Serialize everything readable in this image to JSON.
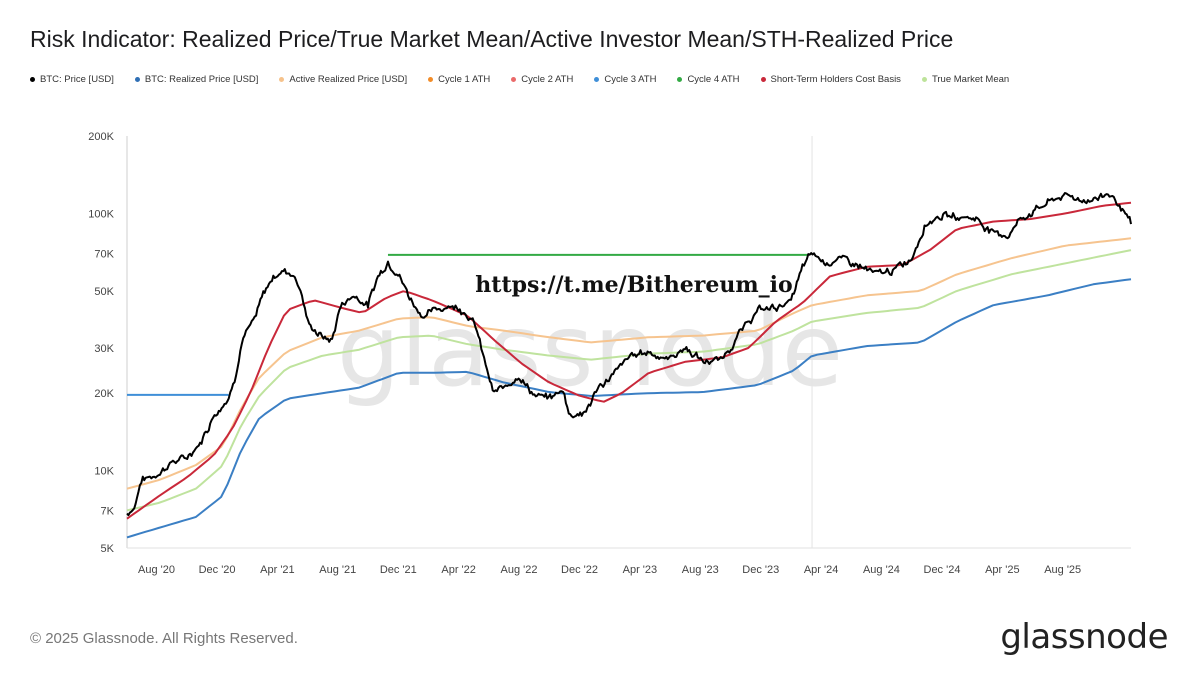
{
  "header": {
    "title": "Risk Indicator: Realized Price/True Market Mean/Active Investor Mean/STH-Realized Price"
  },
  "legend": [
    {
      "label": "BTC: Price [USD]",
      "color": "#000000"
    },
    {
      "label": "BTC: Realized Price [USD]",
      "color": "#2f6fb5"
    },
    {
      "label": "Active Realized Price [USD]",
      "color": "#f6c28b"
    },
    {
      "label": "Cycle 1 ATH",
      "color": "#f28c28"
    },
    {
      "label": "Cycle 2 ATH",
      "color": "#ea6a6a"
    },
    {
      "label": "Cycle 3 ATH",
      "color": "#3f8fd8"
    },
    {
      "label": "Cycle 4 ATH",
      "color": "#33aa44"
    },
    {
      "label": "Short-Term Holders Cost Basis",
      "color": "#c9283a"
    },
    {
      "label": "True Market Mean",
      "color": "#bde39a"
    }
  ],
  "annotation": "https://t.me/Bithereum_io",
  "watermark": "glassnode",
  "footer": {
    "copyright": "© 2025 Glassnode. All Rights Reserved.",
    "logo": "glassnode"
  },
  "chart_data": {
    "type": "line",
    "title": "Risk Indicator: Realized Price/True Market Mean/Active Investor Mean/STH-Realized Price",
    "xlabel": "",
    "ylabel": "",
    "yscale": "log",
    "ylim": [
      5000,
      200000
    ],
    "xlim": [
      2020.42,
      2025.96
    ],
    "y_ticks": [
      {
        "label": "5K",
        "value": 5000
      },
      {
        "label": "7K",
        "value": 7000
      },
      {
        "label": "10K",
        "value": 10000
      },
      {
        "label": "20K",
        "value": 20000
      },
      {
        "label": "30K",
        "value": 30000
      },
      {
        "label": "50K",
        "value": 50000
      },
      {
        "label": "70K",
        "value": 70000
      },
      {
        "label": "100K",
        "value": 100000
      },
      {
        "label": "200K",
        "value": 200000
      }
    ],
    "x_ticks": [
      {
        "label": "Aug '20",
        "t": 2020.583
      },
      {
        "label": "Dec '20",
        "t": 2020.917
      },
      {
        "label": "Apr '21",
        "t": 2021.25
      },
      {
        "label": "Aug '21",
        "t": 2021.583
      },
      {
        "label": "Dec '21",
        "t": 2021.917
      },
      {
        "label": "Apr '22",
        "t": 2022.25
      },
      {
        "label": "Aug '22",
        "t": 2022.583
      },
      {
        "label": "Dec '22",
        "t": 2022.917
      },
      {
        "label": "Apr '23",
        "t": 2023.25
      },
      {
        "label": "Aug '23",
        "t": 2023.583
      },
      {
        "label": "Dec '23",
        "t": 2023.917
      },
      {
        "label": "Apr '24",
        "t": 2024.25
      },
      {
        "label": "Aug '24",
        "t": 2024.583
      },
      {
        "label": "Dec '24",
        "t": 2024.917
      },
      {
        "label": "Apr '25",
        "t": 2025.25
      },
      {
        "label": "Aug '25",
        "t": 2025.583
      }
    ],
    "vertical_markers": [
      2024.2
    ],
    "segments": [
      {
        "name": "Cycle 3 ATH",
        "color": "#3f8fd8",
        "t1": 2020.42,
        "t2": 2020.98,
        "value": 19700
      },
      {
        "name": "Cycle 4 ATH",
        "color": "#33aa44",
        "t1": 2021.86,
        "t2": 2024.18,
        "value": 69000
      }
    ],
    "series": [
      {
        "name": "BTC: Price [USD]",
        "color": "#000000",
        "width": 2.0,
        "jitter": 0.045,
        "points": [
          [
            2020.42,
            6800
          ],
          [
            2020.46,
            7200
          ],
          [
            2020.5,
            9200
          ],
          [
            2020.58,
            9600
          ],
          [
            2020.67,
            10800
          ],
          [
            2020.75,
            11200
          ],
          [
            2020.83,
            13000
          ],
          [
            2020.9,
            16500
          ],
          [
            2020.98,
            19000
          ],
          [
            2021.02,
            24000
          ],
          [
            2021.06,
            33000
          ],
          [
            2021.12,
            38000
          ],
          [
            2021.17,
            48000
          ],
          [
            2021.22,
            56000
          ],
          [
            2021.28,
            60000
          ],
          [
            2021.34,
            58000
          ],
          [
            2021.38,
            50000
          ],
          [
            2021.42,
            37000
          ],
          [
            2021.5,
            33000
          ],
          [
            2021.55,
            32000
          ],
          [
            2021.6,
            44000
          ],
          [
            2021.67,
            48000
          ],
          [
            2021.75,
            44000
          ],
          [
            2021.8,
            56000
          ],
          [
            2021.86,
            65000
          ],
          [
            2021.92,
            58000
          ],
          [
            2021.98,
            47000
          ],
          [
            2022.05,
            40000
          ],
          [
            2022.12,
            42000
          ],
          [
            2022.2,
            44000
          ],
          [
            2022.28,
            42000
          ],
          [
            2022.34,
            37000
          ],
          [
            2022.38,
            29000
          ],
          [
            2022.44,
            20000
          ],
          [
            2022.5,
            21000
          ],
          [
            2022.58,
            23500
          ],
          [
            2022.67,
            19500
          ],
          [
            2022.75,
            19200
          ],
          [
            2022.83,
            20500
          ],
          [
            2022.86,
            16500
          ],
          [
            2022.95,
            16800
          ],
          [
            2023.02,
            21000
          ],
          [
            2023.1,
            23500
          ],
          [
            2023.2,
            28000
          ],
          [
            2023.3,
            29000
          ],
          [
            2023.4,
            27000
          ],
          [
            2023.5,
            30000
          ],
          [
            2023.6,
            26500
          ],
          [
            2023.7,
            27000
          ],
          [
            2023.8,
            34000
          ],
          [
            2023.9,
            42000
          ],
          [
            2023.98,
            43000
          ],
          [
            2024.08,
            45000
          ],
          [
            2024.15,
            62000
          ],
          [
            2024.2,
            70000
          ],
          [
            2024.28,
            64000
          ],
          [
            2024.35,
            67000
          ],
          [
            2024.45,
            63000
          ],
          [
            2024.55,
            58000
          ],
          [
            2024.65,
            60000
          ],
          [
            2024.75,
            67000
          ],
          [
            2024.82,
            90000
          ],
          [
            2024.9,
            98000
          ],
          [
            2025.0,
            97000
          ],
          [
            2025.1,
            96000
          ],
          [
            2025.2,
            84000
          ],
          [
            2025.28,
            82000
          ],
          [
            2025.35,
            95000
          ],
          [
            2025.45,
            105000
          ],
          [
            2025.55,
            115000
          ],
          [
            2025.62,
            117000
          ],
          [
            2025.7,
            112000
          ],
          [
            2025.78,
            115000
          ],
          [
            2025.84,
            120000
          ],
          [
            2025.9,
            107000
          ],
          [
            2025.96,
            90000
          ]
        ]
      },
      {
        "name": "BTC: Realized Price [USD]",
        "color": "#3b7fc4",
        "width": 2.0,
        "jitter": 0.0,
        "points": [
          [
            2020.42,
            5500
          ],
          [
            2020.6,
            6000
          ],
          [
            2020.8,
            6600
          ],
          [
            2020.95,
            8000
          ],
          [
            2021.05,
            12000
          ],
          [
            2021.15,
            16000
          ],
          [
            2021.3,
            19000
          ],
          [
            2021.5,
            20000
          ],
          [
            2021.7,
            21000
          ],
          [
            2021.92,
            24000
          ],
          [
            2022.1,
            24000
          ],
          [
            2022.3,
            24200
          ],
          [
            2022.5,
            22000
          ],
          [
            2022.75,
            20200
          ],
          [
            2022.98,
            19500
          ],
          [
            2023.3,
            20000
          ],
          [
            2023.6,
            20200
          ],
          [
            2023.9,
            21500
          ],
          [
            2024.1,
            24500
          ],
          [
            2024.2,
            28000
          ],
          [
            2024.5,
            30500
          ],
          [
            2024.8,
            31500
          ],
          [
            2025.0,
            38000
          ],
          [
            2025.2,
            44000
          ],
          [
            2025.5,
            48000
          ],
          [
            2025.75,
            53000
          ],
          [
            2025.96,
            55500
          ]
        ]
      },
      {
        "name": "Active Realized Price [USD]",
        "color": "#f6c48f",
        "width": 2.0,
        "jitter": 0.0,
        "points": [
          [
            2020.42,
            8500
          ],
          [
            2020.6,
            9200
          ],
          [
            2020.8,
            10500
          ],
          [
            2020.95,
            12500
          ],
          [
            2021.05,
            17500
          ],
          [
            2021.15,
            23000
          ],
          [
            2021.3,
            29000
          ],
          [
            2021.5,
            33000
          ],
          [
            2021.7,
            35000
          ],
          [
            2021.92,
            39000
          ],
          [
            2022.1,
            39500
          ],
          [
            2022.3,
            36500
          ],
          [
            2022.5,
            35000
          ],
          [
            2022.75,
            33000
          ],
          [
            2022.98,
            31500
          ],
          [
            2023.3,
            33000
          ],
          [
            2023.6,
            33500
          ],
          [
            2023.9,
            35000
          ],
          [
            2024.1,
            41000
          ],
          [
            2024.2,
            44000
          ],
          [
            2024.5,
            48000
          ],
          [
            2024.8,
            50000
          ],
          [
            2025.0,
            58000
          ],
          [
            2025.3,
            67000
          ],
          [
            2025.6,
            75000
          ],
          [
            2025.96,
            80000
          ]
        ]
      },
      {
        "name": "True Market Mean",
        "color": "#bfe39e",
        "width": 2.0,
        "jitter": 0.0,
        "points": [
          [
            2020.42,
            7000
          ],
          [
            2020.6,
            7500
          ],
          [
            2020.8,
            8500
          ],
          [
            2020.95,
            10500
          ],
          [
            2021.05,
            15000
          ],
          [
            2021.15,
            19500
          ],
          [
            2021.3,
            25000
          ],
          [
            2021.5,
            28000
          ],
          [
            2021.7,
            29500
          ],
          [
            2021.92,
            33000
          ],
          [
            2022.1,
            33500
          ],
          [
            2022.3,
            31000
          ],
          [
            2022.5,
            29500
          ],
          [
            2022.75,
            28000
          ],
          [
            2022.98,
            27000
          ],
          [
            2023.3,
            28500
          ],
          [
            2023.6,
            29000
          ],
          [
            2023.9,
            31000
          ],
          [
            2024.1,
            35000
          ],
          [
            2024.2,
            38000
          ],
          [
            2024.5,
            41000
          ],
          [
            2024.8,
            43000
          ],
          [
            2025.0,
            50000
          ],
          [
            2025.3,
            58000
          ],
          [
            2025.6,
            64000
          ],
          [
            2025.96,
            72000
          ]
        ]
      },
      {
        "name": "Short-Term Holders Cost Basis",
        "color": "#c9283a",
        "width": 2.0,
        "jitter": 0.0,
        "points": [
          [
            2020.42,
            6500
          ],
          [
            2020.6,
            8000
          ],
          [
            2020.75,
            9400
          ],
          [
            2020.9,
            11500
          ],
          [
            2021.0,
            14500
          ],
          [
            2021.1,
            20000
          ],
          [
            2021.2,
            30000
          ],
          [
            2021.3,
            42000
          ],
          [
            2021.45,
            46000
          ],
          [
            2021.6,
            43000
          ],
          [
            2021.72,
            41000
          ],
          [
            2021.85,
            47000
          ],
          [
            2021.95,
            50000
          ],
          [
            2022.1,
            46000
          ],
          [
            2022.3,
            40000
          ],
          [
            2022.45,
            32000
          ],
          [
            2022.6,
            26000
          ],
          [
            2022.75,
            22000
          ],
          [
            2022.92,
            19500
          ],
          [
            2023.05,
            18500
          ],
          [
            2023.15,
            20000
          ],
          [
            2023.3,
            24000
          ],
          [
            2023.5,
            26500
          ],
          [
            2023.7,
            27500
          ],
          [
            2023.85,
            30000
          ],
          [
            2024.0,
            38000
          ],
          [
            2024.15,
            45000
          ],
          [
            2024.3,
            57000
          ],
          [
            2024.5,
            62000
          ],
          [
            2024.7,
            63000
          ],
          [
            2024.85,
            72000
          ],
          [
            2025.0,
            87000
          ],
          [
            2025.2,
            93000
          ],
          [
            2025.4,
            95000
          ],
          [
            2025.6,
            100000
          ],
          [
            2025.8,
            107000
          ],
          [
            2025.96,
            110000
          ]
        ]
      }
    ]
  }
}
